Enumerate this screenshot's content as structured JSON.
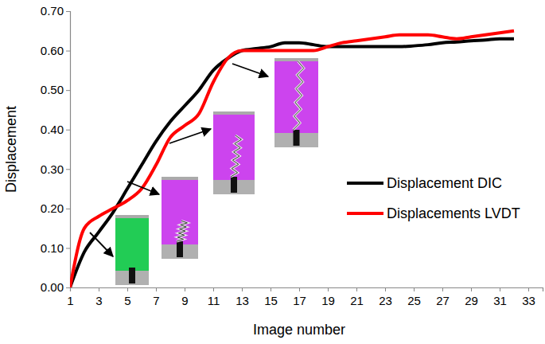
{
  "chart_data": {
    "type": "line",
    "x_label": "Image number",
    "y_label": "Displacement",
    "x": [
      1,
      2,
      3,
      4,
      5,
      6,
      7,
      8,
      9,
      10,
      11,
      12,
      13,
      14,
      15,
      16,
      17,
      18,
      19,
      20,
      21,
      22,
      23,
      24,
      25,
      26,
      27,
      28,
      29,
      30,
      31,
      32
    ],
    "series": [
      {
        "name": "Displacement DIC",
        "color": "#000000",
        "line_style": "solid",
        "values": [
          0,
          0.09,
          0.14,
          0.19,
          0.25,
          0.31,
          0.37,
          0.42,
          0.46,
          0.5,
          0.55,
          0.58,
          0.6,
          0.605,
          0.61,
          0.62,
          0.62,
          0.615,
          0.61,
          0.61,
          0.61,
          0.61,
          0.61,
          0.61,
          0.612,
          0.615,
          0.62,
          0.622,
          0.625,
          0.627,
          0.63,
          0.63
        ]
      },
      {
        "name": "Displacements LVDT",
        "color": "#ff0000",
        "line_style": "solid",
        "values": [
          0,
          0.15,
          0.18,
          0.2,
          0.22,
          0.25,
          0.31,
          0.38,
          0.41,
          0.44,
          0.52,
          0.58,
          0.6,
          0.6,
          0.6,
          0.6,
          0.6,
          0.6,
          0.61,
          0.62,
          0.625,
          0.63,
          0.635,
          0.64,
          0.64,
          0.64,
          0.635,
          0.63,
          0.635,
          0.64,
          0.645,
          0.65
        ]
      }
    ],
    "xlim": [
      1,
      34
    ],
    "xticks": [
      1,
      3,
      5,
      7,
      9,
      11,
      13,
      15,
      17,
      19,
      21,
      23,
      25,
      27,
      29,
      31,
      33
    ],
    "ylim": [
      0,
      0.7
    ],
    "yticks": [
      {
        "value": 0,
        "label": "0.00"
      },
      {
        "value": 0.1,
        "label": "0.10"
      },
      {
        "value": 0.2,
        "label": "0.20"
      },
      {
        "value": 0.3,
        "label": "0.30"
      },
      {
        "value": 0.4,
        "label": "0.40"
      },
      {
        "value": 0.5,
        "label": "0.50"
      },
      {
        "value": 0.6,
        "label": "0.60"
      },
      {
        "value": 0.7,
        "label": "0.70"
      }
    ],
    "grid": false,
    "legend": "right"
  }
}
